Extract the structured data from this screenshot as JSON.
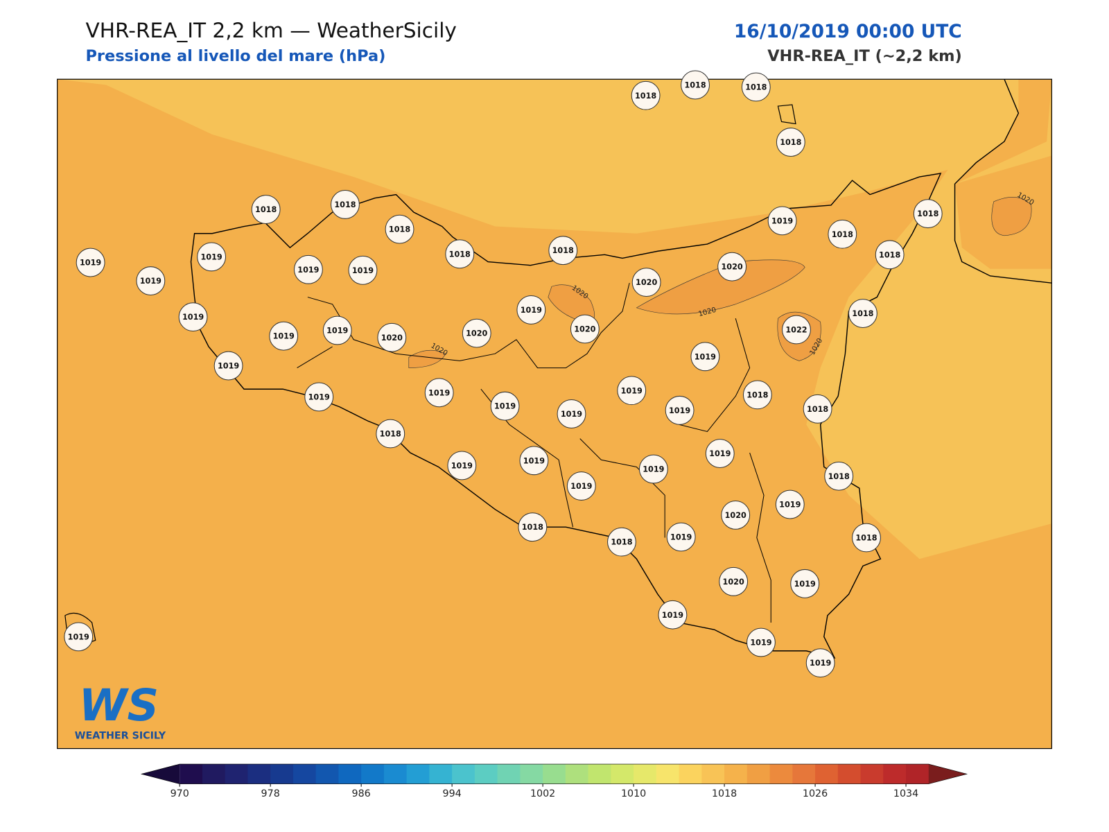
{
  "header": {
    "title": "VHR-REA_IT 2,2 km — WeatherSicily",
    "subtitle": "Pressione al livello del mare (hPa)",
    "datetime": "16/10/2019 00:00 UTC",
    "model": "VHR-REA_IT (~2,2 km)"
  },
  "map": {
    "stations": [
      1018,
      1018,
      1018,
      1018,
      1018,
      1018,
      1018,
      1018,
      1018,
      1019,
      1018,
      1018,
      1018,
      1019,
      1019,
      1019,
      1019,
      1019,
      1020,
      1020,
      1019,
      1020,
      1018,
      1019,
      1019,
      1019,
      1020,
      1020,
      1022,
      1019,
      1019,
      1019,
      1018,
      1019,
      1019,
      1019,
      1019,
      1019,
      1018,
      1018,
      1019,
      1019,
      1019,
      1019,
      1019,
      1018,
      1019,
      1020,
      1018,
      1018,
      1019,
      1018,
      1020,
      1019,
      1019,
      1019,
      1019,
      1019
    ],
    "contour_labels": [
      1020,
      1020,
      1020,
      1020,
      1020
    ]
  },
  "colorbar": {
    "levels": [
      970,
      972,
      974,
      976,
      978,
      980,
      982,
      984,
      986,
      988,
      990,
      992,
      994,
      996,
      998,
      1000,
      1002,
      1004,
      1006,
      1008,
      1010,
      1012,
      1014,
      1016,
      1018,
      1020,
      1022,
      1024,
      1026,
      1028,
      1030,
      1032,
      1034,
      1036
    ],
    "colors": [
      "#1f0d4e",
      "#201a60",
      "#1f2370",
      "#1b2e80",
      "#173a8f",
      "#1547a0",
      "#1257af",
      "#0f68bf",
      "#1279c9",
      "#1a8bd1",
      "#239ed4",
      "#35b3d2",
      "#4bc3cd",
      "#5ccdc2",
      "#70d3b3",
      "#85d9a3",
      "#98dd8f",
      "#aee07d",
      "#c1e56e",
      "#d4e86a",
      "#e6e86a",
      "#f7e46b",
      "#fbd35e",
      "#f8c356",
      "#f5b24b",
      "#f09f43",
      "#ec8a3d",
      "#e6773a",
      "#df6232",
      "#d44d2e",
      "#c93b2d",
      "#bd2b2b",
      "#b02428"
    ],
    "under_color": "#170a3a",
    "over_color": "#7a1d1d",
    "ticks": [
      970,
      978,
      986,
      994,
      1002,
      1010,
      1018,
      1026,
      1034
    ]
  },
  "logo": {
    "mark": "WS",
    "text": "WEATHER SICILY"
  }
}
